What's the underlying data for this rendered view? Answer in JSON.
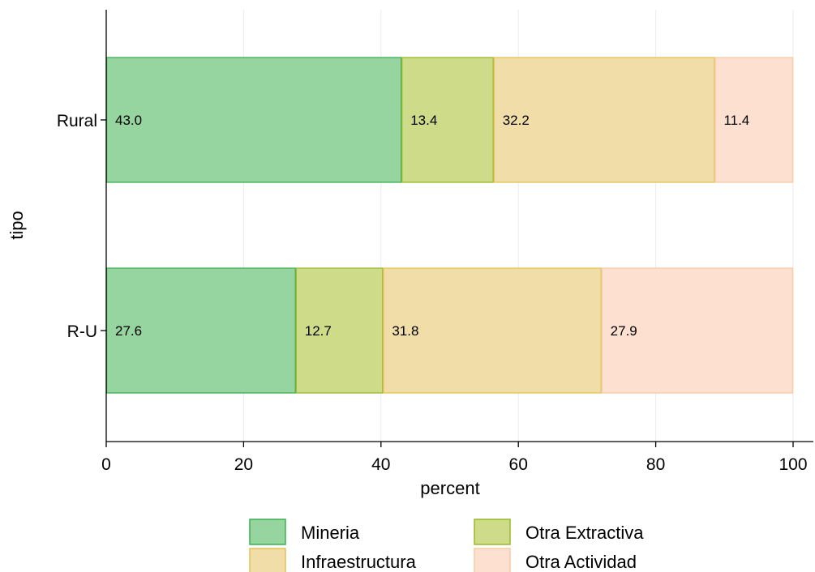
{
  "chart_data": {
    "type": "bar",
    "orientation": "horizontal",
    "stacked": true,
    "categories": [
      "Rural",
      "R-U"
    ],
    "series": [
      {
        "name": "Mineria",
        "values": [
          43.0,
          27.6
        ],
        "fill": "#96d59f",
        "stroke": "#3aaf50"
      },
      {
        "name": "Otra Extractiva",
        "values": [
          13.4,
          12.7
        ],
        "fill": "#cedc8a",
        "stroke": "#9ab82a"
      },
      {
        "name": "Infraestructura",
        "values": [
          32.2,
          31.8
        ],
        "fill": "#f0dda8",
        "stroke": "#e3c258"
      },
      {
        "name": "Otra Actividad",
        "values": [
          11.4,
          27.9
        ],
        "fill": "#fde0cf",
        "stroke": "#f6caa6"
      }
    ],
    "data_labels": [
      [
        "43.0",
        "13.4",
        "32.2",
        "11.4"
      ],
      [
        "27.6",
        "12.7",
        "31.8",
        "27.9"
      ]
    ],
    "xlabel": "percent",
    "ylabel": "tipo",
    "xlim": [
      0,
      100
    ],
    "x_ticks": [
      0,
      20,
      40,
      60,
      80,
      100
    ],
    "x_tick_labels": [
      "0",
      "20",
      "40",
      "60",
      "80",
      "100"
    ],
    "grid": "vertical",
    "legend_position": "bottom"
  }
}
